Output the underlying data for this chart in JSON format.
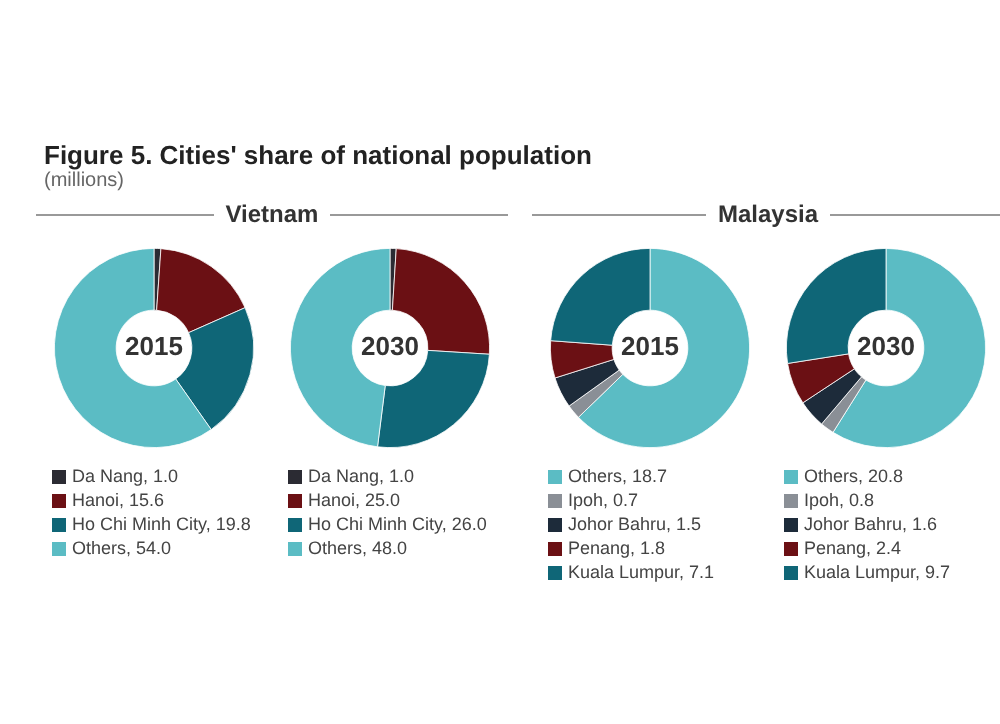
{
  "chart_data": [
    {
      "type": "donut",
      "title": "2015",
      "annotations": [
        "Figure 5. Cities' share of national population",
        "(millions)",
        "Vietnam"
      ],
      "categories": [
        "Da Nang",
        "Hanoi",
        "Ho Chi Minh City",
        "Others"
      ],
      "values": [
        1.0,
        15.6,
        19.8,
        54.0
      ],
      "value_labels": [
        "1.0",
        "15.6",
        "19.8",
        "54.0"
      ],
      "colors": [
        "#2b2b33",
        "#6b1014",
        "#0f6677",
        "#5bbcc4"
      ],
      "legend": "bottom"
    },
    {
      "type": "donut",
      "title": "2030",
      "categories": [
        "Da Nang",
        "Hanoi",
        "Ho Chi Minh City",
        "Others"
      ],
      "values": [
        1.0,
        25.0,
        26.0,
        48.0
      ],
      "value_labels": [
        "1.0",
        "25.0",
        "26.0",
        "48.0"
      ],
      "colors": [
        "#2b2b33",
        "#6b1014",
        "#0f6677",
        "#5bbcc4"
      ],
      "legend": "bottom"
    },
    {
      "type": "donut",
      "title": "2015",
      "annotations": [
        "Malaysia"
      ],
      "categories": [
        "Others",
        "Ipoh",
        "Johor Bahru",
        "Penang",
        "Kuala Lumpur"
      ],
      "values": [
        18.7,
        0.7,
        1.5,
        1.8,
        7.1
      ],
      "value_labels": [
        "18.7",
        "0.7",
        "1.5",
        "1.8",
        "7.1"
      ],
      "colors": [
        "#5bbcc4",
        "#8a8f96",
        "#1d2b3a",
        "#6b1014",
        "#0f6677"
      ],
      "legend": "bottom"
    },
    {
      "type": "donut",
      "title": "2030",
      "categories": [
        "Others",
        "Ipoh",
        "Johor Bahru",
        "Penang",
        "Kuala Lumpur"
      ],
      "values": [
        20.8,
        0.8,
        1.6,
        2.4,
        9.7
      ],
      "value_labels": [
        "20.8",
        "0.8",
        "1.6",
        "2.4",
        "9.7"
      ],
      "colors": [
        "#5bbcc4",
        "#8a8f96",
        "#1d2b3a",
        "#6b1014",
        "#0f6677"
      ],
      "legend": "bottom"
    }
  ]
}
